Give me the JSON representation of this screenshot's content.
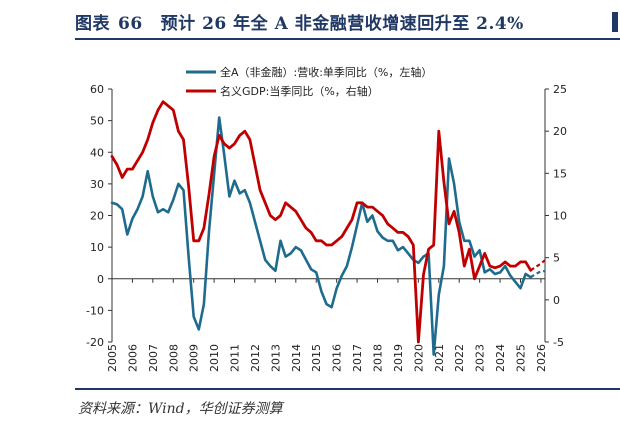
{
  "figure": {
    "label": "图表",
    "number": "66",
    "title": "预计 26 年全 A 非金融营收增速回升至 2.4%",
    "source": "资料来源：Wind，华创证券测算"
  },
  "colors": {
    "left_series": "#1f6b8e",
    "right_series": "#c00000",
    "axis": "#333333",
    "frame": "#1f3864"
  },
  "chart_data": {
    "type": "line",
    "x_ticks": [
      "2005",
      "2006",
      "2007",
      "2008",
      "2009",
      "2010",
      "2011",
      "2012",
      "2013",
      "2014",
      "2015",
      "2016",
      "2017",
      "2018",
      "2019",
      "2020",
      "2021",
      "2022",
      "2023",
      "2024",
      "2025",
      "2026"
    ],
    "x_range": [
      2005,
      2026.2
    ],
    "y_left": {
      "min": -20,
      "max": 60,
      "ticks": [
        "60",
        "50",
        "40",
        "30",
        "20",
        "10",
        "0",
        "-10",
        "-20"
      ]
    },
    "y_right": {
      "min": -5,
      "max": 25,
      "ticks": [
        "25",
        "20",
        "15",
        "10",
        "5",
        "0",
        "-5"
      ]
    },
    "legend_placement": "top",
    "series": [
      {
        "name": "全A（非金融）:营收:单季同比（%，左轴）",
        "axis": "left",
        "x": [
          2005,
          2005.25,
          2005.5,
          2005.75,
          2006,
          2006.25,
          2006.5,
          2006.75,
          2007,
          2007.25,
          2007.5,
          2007.75,
          2008,
          2008.25,
          2008.5,
          2008.75,
          2009,
          2009.25,
          2009.5,
          2009.75,
          2010,
          2010.25,
          2010.5,
          2010.75,
          2011,
          2011.25,
          2011.5,
          2011.75,
          2012,
          2012.25,
          2012.5,
          2012.75,
          2013,
          2013.25,
          2013.5,
          2013.75,
          2014,
          2014.25,
          2014.5,
          2014.75,
          2015,
          2015.25,
          2015.5,
          2015.75,
          2016,
          2016.25,
          2016.5,
          2016.75,
          2017,
          2017.25,
          2017.5,
          2017.75,
          2018,
          2018.25,
          2018.5,
          2018.75,
          2019,
          2019.25,
          2019.5,
          2019.75,
          2020,
          2020.25,
          2020.5,
          2020.75,
          2021,
          2021.25,
          2021.5,
          2021.75,
          2022,
          2022.25,
          2022.5,
          2022.75,
          2023,
          2023.25,
          2023.5,
          2023.75,
          2024,
          2024.25,
          2024.5,
          2024.75,
          2025,
          2025.25,
          2025.5
        ],
        "values": [
          24,
          23.5,
          22,
          14,
          19,
          22,
          26,
          34,
          26,
          21,
          22,
          21,
          25,
          30,
          28,
          7,
          -12,
          -16,
          -8,
          15,
          33,
          51,
          39,
          26,
          31,
          27,
          28,
          24,
          18,
          12,
          6,
          4,
          2.5,
          12,
          7,
          8,
          10,
          9,
          6,
          3,
          2,
          -4,
          -8,
          -9,
          -3,
          1,
          4,
          10,
          17,
          24,
          18,
          20,
          15,
          13,
          12,
          12,
          9,
          10,
          8,
          6,
          5,
          7,
          8,
          -24,
          -5,
          4,
          38,
          30,
          18,
          12,
          12,
          7,
          9,
          2,
          3,
          1.5,
          2,
          4,
          1,
          -1,
          -3,
          1.5,
          0.5
        ],
        "forecast_x": [
          2025.5,
          2025.75,
          2026,
          2026.2
        ],
        "forecast_values": [
          0.5,
          1.5,
          2.4,
          2.4
        ]
      },
      {
        "name": "名义GDP:当季同比（%，右轴）",
        "axis": "right",
        "x": [
          2005,
          2005.25,
          2005.5,
          2005.75,
          2006,
          2006.25,
          2006.5,
          2006.75,
          2007,
          2007.25,
          2007.5,
          2007.75,
          2008,
          2008.25,
          2008.5,
          2008.75,
          2009,
          2009.25,
          2009.5,
          2009.75,
          2010,
          2010.25,
          2010.5,
          2010.75,
          2011,
          2011.25,
          2011.5,
          2011.75,
          2012,
          2012.25,
          2012.5,
          2012.75,
          2013,
          2013.25,
          2013.5,
          2013.75,
          2014,
          2014.25,
          2014.5,
          2014.75,
          2015,
          2015.25,
          2015.5,
          2015.75,
          2016,
          2016.25,
          2016.5,
          2016.75,
          2017,
          2017.25,
          2017.5,
          2017.75,
          2018,
          2018.25,
          2018.5,
          2018.75,
          2019,
          2019.25,
          2019.5,
          2019.75,
          2020,
          2020.25,
          2020.5,
          2020.75,
          2021,
          2021.25,
          2021.5,
          2021.75,
          2022,
          2022.25,
          2022.5,
          2022.75,
          2023,
          2023.25,
          2023.5,
          2023.75,
          2024,
          2024.25,
          2024.5,
          2024.75,
          2025,
          2025.25,
          2025.5
        ],
        "values": [
          17,
          16,
          14.5,
          15.5,
          15.5,
          16.5,
          17.5,
          19,
          21,
          22.5,
          23.5,
          23,
          22.5,
          20,
          19,
          13.5,
          7,
          7,
          8.5,
          12.5,
          17,
          19.5,
          18.5,
          18,
          18.5,
          19.5,
          20,
          19,
          16,
          13,
          11.5,
          10,
          9.5,
          10,
          11.5,
          11,
          10.5,
          9.5,
          8.5,
          8,
          7,
          7,
          6.5,
          6.5,
          7,
          7.5,
          8.5,
          9.5,
          11.5,
          11.5,
          11,
          11,
          10.5,
          10,
          9,
          8.5,
          8,
          8,
          7.5,
          6.5,
          -5,
          3,
          6,
          6.5,
          20,
          14,
          9,
          10.5,
          8,
          4,
          6,
          2.5,
          4,
          5.5,
          4,
          3.8,
          4,
          4.5,
          4,
          4,
          4.5,
          4.5,
          3.5
        ],
        "forecast_x": [
          2025.5,
          2025.75,
          2026,
          2026.2
        ],
        "forecast_values": [
          3.5,
          3.9,
          4.3,
          4.7
        ]
      }
    ]
  }
}
